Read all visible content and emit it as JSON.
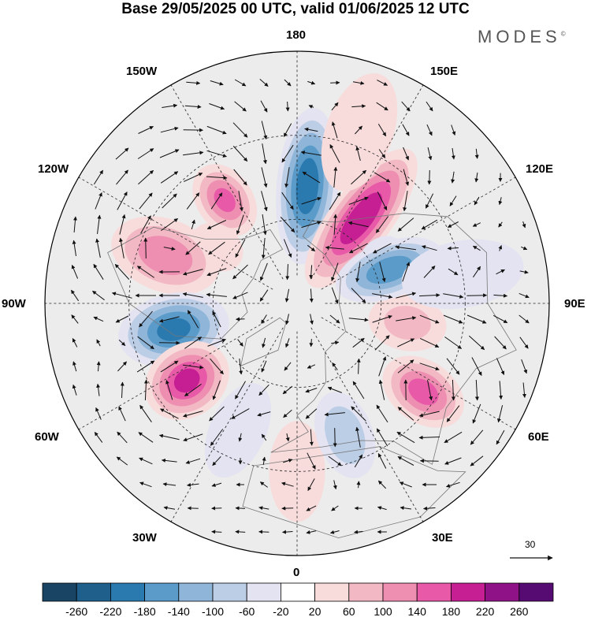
{
  "title": "Base 29/05/2025 00 UTC, valid 01/06/2025 12 UTC",
  "brand": "MODES",
  "brand_mark": "©",
  "longitude_labels": {
    "lon_180": "180",
    "lon_150e": "150E",
    "lon_120e": "120E",
    "lon_90e": "90E",
    "lon_60e": "60E",
    "lon_30e": "30E",
    "lon_0": "0",
    "lon_30w": "30W",
    "lon_60w": "60W",
    "lon_90w": "90W",
    "lon_120w": "120W",
    "lon_150w": "150W"
  },
  "vector_reference_label": "30",
  "colorbar": {
    "ticks": [
      "-260",
      "-220",
      "-180",
      "-140",
      "-100",
      "-60",
      "-20",
      "20",
      "60",
      "100",
      "140",
      "180",
      "220",
      "260"
    ],
    "colors": [
      "#1a4464",
      "#1f5f8b",
      "#2a7ab0",
      "#5a9bc9",
      "#8fb6d9",
      "#bccde6",
      "#e3e3f1",
      "#ffffff",
      "#f8dcdc",
      "#f2b8c4",
      "#ee8fb2",
      "#e85aa8",
      "#c51f93",
      "#8f1286",
      "#560b73"
    ]
  },
  "colors": {
    "ocean_land_base": "#ececec",
    "coast": "#777777",
    "grid": "#222222",
    "outline": "#000000"
  },
  "anomalies": [
    {
      "lon": 175,
      "lat": 48,
      "value": -210,
      "along": 28,
      "across": 11
    },
    {
      "lon": 143,
      "lat": 52,
      "value": 215,
      "along": 30,
      "across": 11
    },
    {
      "lon": 120,
      "lat": 55,
      "value": -30,
      "along": 8,
      "across": 6
    },
    {
      "lon": -145,
      "lat": 45,
      "value": 140,
      "along": 14,
      "across": 10
    },
    {
      "lon": -125,
      "lat": 55,
      "value": 25,
      "along": 10,
      "across": 8
    },
    {
      "lon": -110,
      "lat": 40,
      "value": 120,
      "along": 20,
      "across": 13
    },
    {
      "lon": -78,
      "lat": 45,
      "value": -190,
      "along": 20,
      "across": 13
    },
    {
      "lon": -55,
      "lat": 42,
      "value": 190,
      "along": 16,
      "across": 13
    },
    {
      "lon": -25,
      "lat": 40,
      "value": -45,
      "along": 18,
      "across": 10
    },
    {
      "lon": 0,
      "lat": 30,
      "value": 35,
      "along": 18,
      "across": 10
    },
    {
      "lon": 20,
      "lat": 40,
      "value": -80,
      "along": 16,
      "across": 10
    },
    {
      "lon": 55,
      "lat": 35,
      "value": 150,
      "along": 16,
      "across": 11
    },
    {
      "lon": 80,
      "lat": 50,
      "value": 60,
      "along": 14,
      "across": 10
    },
    {
      "lon": 110,
      "lat": 55,
      "value": -170,
      "along": 20,
      "across": 10
    },
    {
      "lon": 100,
      "lat": 30,
      "value": -35,
      "along": 22,
      "across": 12
    },
    {
      "lon": 160,
      "lat": 25,
      "value": 40,
      "along": 22,
      "across": 12
    }
  ]
}
